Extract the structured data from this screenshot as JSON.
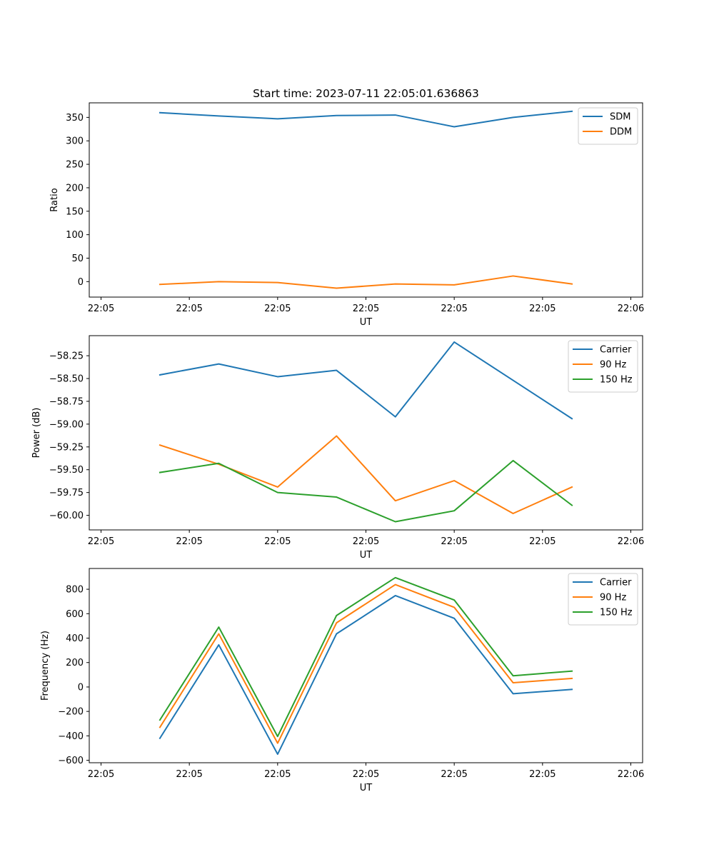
{
  "colors": {
    "c0": "#1f77b4",
    "c1": "#ff7f0e",
    "c2": "#2ca02c"
  },
  "chart_data": [
    {
      "type": "line",
      "title": "Start time: 2023-07-11 22:05:01.636863",
      "xlabel": "UT",
      "ylabel": "Ratio",
      "x": [
        0.5,
        1.0,
        1.5,
        2.0,
        2.5,
        3.0,
        3.5,
        4.0
      ],
      "xlim": [
        -0.1,
        4.6
      ],
      "xticks": [
        0,
        0.75,
        1.5,
        2.25,
        3.0,
        3.75,
        4.5
      ],
      "xtick_labels": [
        "22:05",
        "22:05",
        "22:05",
        "22:05",
        "22:05",
        "22:05",
        "22:06"
      ],
      "ylim": [
        -33,
        381
      ],
      "yticks": [
        0,
        50,
        100,
        150,
        200,
        250,
        300,
        350
      ],
      "ytick_labels": [
        "0",
        "50",
        "100",
        "150",
        "200",
        "250",
        "300",
        "350"
      ],
      "legend_position": "top-right",
      "series": [
        {
          "name": "SDM",
          "color_key": "c0",
          "values": [
            360,
            353,
            347,
            354,
            355,
            330,
            350,
            363
          ]
        },
        {
          "name": "DDM",
          "color_key": "c1",
          "values": [
            -6,
            0,
            -2,
            -14,
            -5,
            -7,
            12,
            -5
          ]
        }
      ]
    },
    {
      "type": "line",
      "title": "",
      "xlabel": "UT",
      "ylabel": "Power (dB)",
      "x": [
        0.5,
        1.0,
        1.5,
        2.0,
        2.5,
        3.0,
        3.5,
        4.0
      ],
      "xlim": [
        -0.1,
        4.6
      ],
      "xticks": [
        0,
        0.75,
        1.5,
        2.25,
        3.0,
        3.75,
        4.5
      ],
      "xtick_labels": [
        "22:05",
        "22:05",
        "22:05",
        "22:05",
        "22:05",
        "22:05",
        "22:06"
      ],
      "ylim": [
        -60.16,
        -58.03
      ],
      "yticks": [
        -60.0,
        -59.75,
        -59.5,
        -59.25,
        -59.0,
        -58.75,
        -58.5,
        -58.25
      ],
      "ytick_labels": [
        "−60.00",
        "−59.75",
        "−59.50",
        "−59.25",
        "−59.00",
        "−58.75",
        "−58.50",
        "−58.25"
      ],
      "legend_position": "top-right",
      "series": [
        {
          "name": "Carrier",
          "color_key": "c0",
          "values": [
            -58.46,
            -58.34,
            -58.48,
            -58.41,
            -58.92,
            -58.1,
            -58.52,
            -58.94
          ]
        },
        {
          "name": "90 Hz",
          "color_key": "c1",
          "values": [
            -59.23,
            -59.44,
            -59.69,
            -59.13,
            -59.84,
            -59.62,
            -59.98,
            -59.69
          ]
        },
        {
          "name": "150 Hz",
          "color_key": "c2",
          "values": [
            -59.53,
            -59.43,
            -59.75,
            -59.8,
            -60.07,
            -59.95,
            -59.4,
            -59.89
          ]
        }
      ]
    },
    {
      "type": "line",
      "title": "",
      "xlabel": "UT",
      "ylabel": "Frequency (Hz)",
      "x": [
        0.5,
        1.0,
        1.5,
        2.0,
        2.5,
        3.0,
        3.5,
        4.0
      ],
      "xlim": [
        -0.1,
        4.6
      ],
      "xticks": [
        0,
        0.75,
        1.5,
        2.25,
        3.0,
        3.75,
        4.5
      ],
      "xtick_labels": [
        "22:05",
        "22:05",
        "22:05",
        "22:05",
        "22:05",
        "22:05",
        "22:06"
      ],
      "ylim": [
        -620,
        970
      ],
      "yticks": [
        -600,
        -400,
        -200,
        0,
        200,
        400,
        600,
        800
      ],
      "ytick_labels": [
        "−600",
        "−400",
        "−200",
        "0",
        "200",
        "400",
        "600",
        "800"
      ],
      "legend_position": "top-right",
      "series": [
        {
          "name": "Carrier",
          "color_key": "c0",
          "values": [
            -420,
            345,
            -550,
            435,
            748,
            562,
            -55,
            -20
          ]
        },
        {
          "name": "90 Hz",
          "color_key": "c1",
          "values": [
            -330,
            435,
            -460,
            525,
            838,
            652,
            35,
            70
          ]
        },
        {
          "name": "150 Hz",
          "color_key": "c2",
          "values": [
            -270,
            490,
            -405,
            585,
            895,
            712,
            92,
            130
          ]
        }
      ]
    }
  ]
}
